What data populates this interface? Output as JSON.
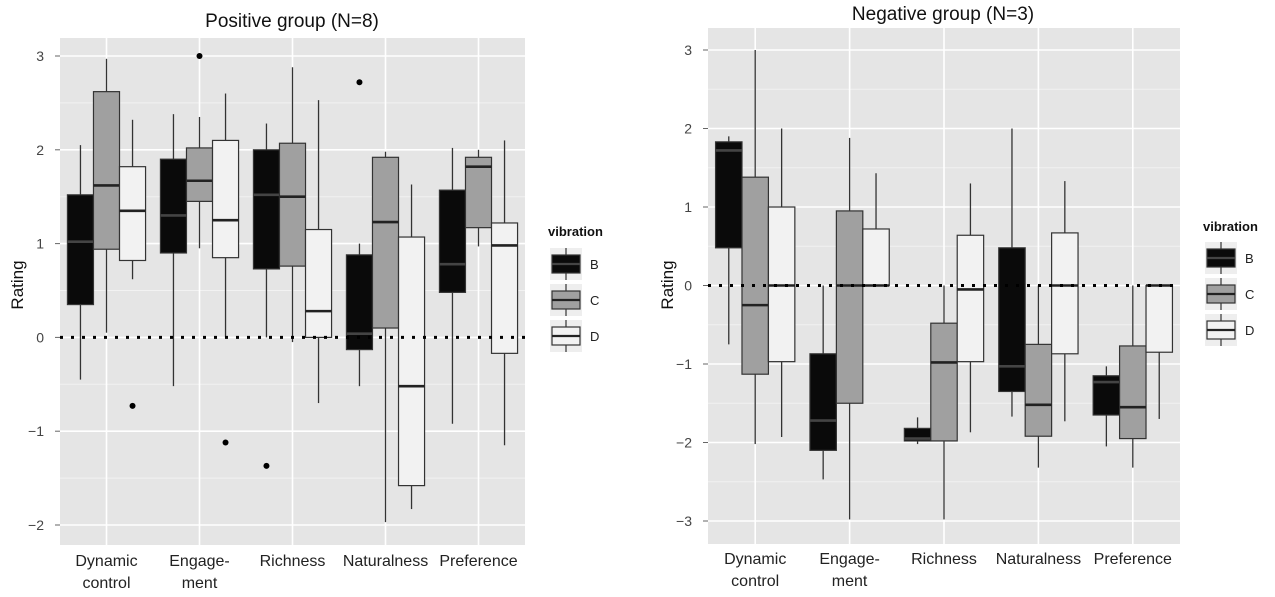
{
  "chart_data": [
    {
      "type": "boxplot",
      "title": "Positive group (N=8)",
      "ylabel": "Rating",
      "ylim": [
        -2.2,
        3.3
      ],
      "yticks": [
        3,
        2,
        1,
        0,
        -1,
        -2
      ],
      "ytick_labels": [
        "3",
        "2",
        "1",
        "0",
        "−1",
        "−2"
      ],
      "reference_line": 0,
      "categories": [
        "Dynamic\ncontrol",
        "Engage-\nment",
        "Richness",
        "Naturalness",
        "Preference"
      ],
      "series": [
        {
          "name": "B",
          "color": "#0a0a0a",
          "boxes": [
            {
              "whislo": -0.45,
              "q1": 0.35,
              "med": 1.02,
              "q3": 1.52,
              "whishi": 2.05,
              "outliers": []
            },
            {
              "whislo": -0.52,
              "q1": 0.9,
              "med": 1.3,
              "q3": 1.9,
              "whishi": 2.38,
              "outliers": []
            },
            {
              "whislo": 0.0,
              "q1": 0.73,
              "med": 1.52,
              "q3": 2.0,
              "whishi": 2.28,
              "outliers": [
                -1.37
              ]
            },
            {
              "whislo": -0.52,
              "q1": -0.13,
              "med": 0.04,
              "q3": 0.88,
              "whishi": 1.0,
              "outliers": [
                2.72
              ]
            },
            {
              "whislo": -0.92,
              "q1": 0.48,
              "med": 0.78,
              "q3": 1.57,
              "whishi": 2.02,
              "outliers": []
            }
          ]
        },
        {
          "name": "C",
          "color": "#a0a0a0",
          "boxes": [
            {
              "whislo": 0.05,
              "q1": 0.94,
              "med": 1.62,
              "q3": 2.62,
              "whishi": 2.97,
              "outliers": []
            },
            {
              "whislo": 0.95,
              "q1": 1.45,
              "med": 1.67,
              "q3": 2.02,
              "whishi": 2.35,
              "outliers": [
                3.0
              ]
            },
            {
              "whislo": -0.05,
              "q1": 0.76,
              "med": 1.5,
              "q3": 2.07,
              "whishi": 2.88,
              "outliers": []
            },
            {
              "whislo": -1.97,
              "q1": 0.1,
              "med": 1.23,
              "q3": 1.92,
              "whishi": 1.98,
              "outliers": []
            },
            {
              "whislo": 0.97,
              "q1": 1.17,
              "med": 1.82,
              "q3": 1.92,
              "whishi": 2.0,
              "outliers": []
            }
          ]
        },
        {
          "name": "D",
          "color": "#f2f2f2",
          "boxes": [
            {
              "whislo": 0.62,
              "q1": 0.82,
              "med": 1.35,
              "q3": 1.82,
              "whishi": 2.32,
              "outliers": [
                -0.73
              ]
            },
            {
              "whislo": 0.0,
              "q1": 0.85,
              "med": 1.25,
              "q3": 2.1,
              "whishi": 2.6,
              "outliers": [
                -1.12
              ]
            },
            {
              "whislo": -0.7,
              "q1": 0.0,
              "med": 0.28,
              "q3": 1.15,
              "whishi": 2.53,
              "outliers": []
            },
            {
              "whislo": -1.83,
              "q1": -1.58,
              "med": -0.52,
              "q3": 1.07,
              "whishi": 1.63,
              "outliers": []
            },
            {
              "whislo": -1.15,
              "q1": -0.17,
              "med": 0.98,
              "q3": 1.22,
              "whishi": 2.1,
              "outliers": []
            }
          ]
        }
      ],
      "grid": true
    },
    {
      "type": "boxplot",
      "title": "Negative group (N=3)",
      "ylabel": "Rating",
      "ylim": [
        -3.3,
        3.3
      ],
      "yticks": [
        3,
        2,
        1,
        0,
        -1,
        -2,
        -3
      ],
      "ytick_labels": [
        "3",
        "2",
        "1",
        "0",
        "−1",
        "−2",
        "−3"
      ],
      "reference_line": 0,
      "categories": [
        "Dynamic\ncontrol",
        "Engage-\nment",
        "Richness",
        "Naturalness",
        "Preference"
      ],
      "series": [
        {
          "name": "B",
          "color": "#0a0a0a",
          "boxes": [
            {
              "whislo": -0.75,
              "q1": 0.48,
              "med": 1.72,
              "q3": 1.83,
              "whishi": 1.9,
              "outliers": []
            },
            {
              "whislo": -2.47,
              "q1": -2.1,
              "med": -1.72,
              "q3": -0.87,
              "whishi": 0.0,
              "outliers": []
            },
            {
              "whislo": -2.02,
              "q1": -1.98,
              "med": -1.95,
              "q3": -1.82,
              "whishi": -1.68,
              "outliers": []
            },
            {
              "whislo": -1.67,
              "q1": -1.35,
              "med": -1.03,
              "q3": 0.48,
              "whishi": 2.0,
              "outliers": []
            },
            {
              "whislo": -2.05,
              "q1": -1.65,
              "med": -1.23,
              "q3": -1.15,
              "whishi": -1.03,
              "outliers": []
            }
          ]
        },
        {
          "name": "C",
          "color": "#a0a0a0",
          "boxes": [
            {
              "whislo": -2.02,
              "q1": -1.13,
              "med": -0.25,
              "q3": 1.38,
              "whishi": 3.0,
              "outliers": []
            },
            {
              "whislo": -2.98,
              "q1": -1.5,
              "med": 0.0,
              "q3": 0.95,
              "whishi": 1.88,
              "outliers": []
            },
            {
              "whislo": -2.98,
              "q1": -1.98,
              "med": -0.98,
              "q3": -0.48,
              "whishi": 0.0,
              "outliers": []
            },
            {
              "whislo": -2.32,
              "q1": -1.92,
              "med": -1.52,
              "q3": -0.75,
              "whishi": 0.0,
              "outliers": []
            },
            {
              "whislo": -2.32,
              "q1": -1.95,
              "med": -1.55,
              "q3": -0.77,
              "whishi": 0.0,
              "outliers": []
            }
          ]
        },
        {
          "name": "D",
          "color": "#f2f2f2",
          "boxes": [
            {
              "whislo": -1.93,
              "q1": -0.97,
              "med": 0.0,
              "q3": 1.0,
              "whishi": 2.0,
              "outliers": []
            },
            {
              "whislo": 0.0,
              "q1": 0.0,
              "med": 0.0,
              "q3": 0.72,
              "whishi": 1.43,
              "outliers": []
            },
            {
              "whislo": -1.87,
              "q1": -0.97,
              "med": -0.05,
              "q3": 0.64,
              "whishi": 1.3,
              "outliers": []
            },
            {
              "whislo": -1.73,
              "q1": -0.87,
              "med": 0.0,
              "q3": 0.67,
              "whishi": 1.33,
              "outliers": []
            },
            {
              "whislo": -1.7,
              "q1": -0.85,
              "med": 0.0,
              "q3": 0.0,
              "whishi": 0.0,
              "outliers": []
            }
          ]
        }
      ],
      "grid": true
    }
  ],
  "legend": {
    "title": "vibration",
    "items": [
      {
        "label": "B",
        "color": "#0a0a0a"
      },
      {
        "label": "C",
        "color": "#a0a0a0"
      },
      {
        "label": "D",
        "color": "#f2f2f2"
      }
    ]
  }
}
